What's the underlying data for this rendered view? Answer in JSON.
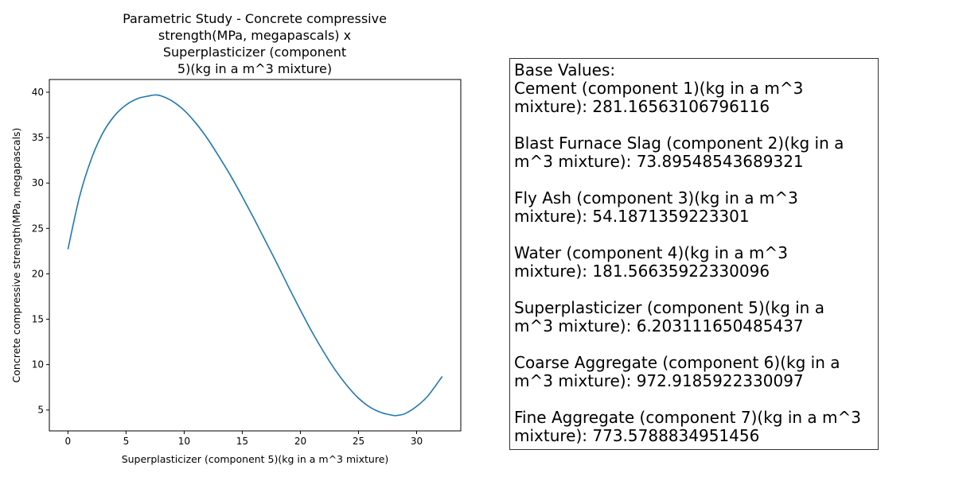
{
  "chart_data": {
    "type": "line",
    "title_lines": [
      "Parametric Study - Concrete compressive",
      "strength(MPa, megapascals)  x",
      "Superplasticizer (component",
      "5)(kg in a m^3 mixture)"
    ],
    "xlabel": "Superplasticizer (component 5)(kg in a m^3 mixture)",
    "ylabel": "Concrete compressive strength(MPa, megapascals)",
    "xlim": [
      -1.6,
      33.8
    ],
    "ylim": [
      2.7,
      41.4
    ],
    "x_ticks": [
      0,
      5,
      10,
      15,
      20,
      25,
      30
    ],
    "y_ticks": [
      5,
      10,
      15,
      20,
      25,
      30,
      35,
      40
    ],
    "grid": false,
    "series": [
      {
        "color": "#1f77b4",
        "x": [
          0,
          1,
          2,
          3,
          4,
          5,
          6,
          7,
          7.5,
          8,
          9,
          10,
          11,
          12,
          13,
          14,
          15,
          16,
          17,
          18,
          19,
          20,
          21,
          22,
          23,
          24,
          25,
          26,
          27,
          28,
          28.3,
          29,
          30,
          31,
          32.2
        ],
        "y": [
          22.7,
          28.5,
          32.6,
          35.5,
          37.4,
          38.6,
          39.3,
          39.6,
          39.7,
          39.6,
          39.0,
          38.0,
          36.6,
          34.9,
          32.9,
          30.8,
          28.5,
          26.1,
          23.6,
          21.1,
          18.5,
          16.0,
          13.6,
          11.4,
          9.4,
          7.7,
          6.3,
          5.3,
          4.7,
          4.4,
          4.4,
          4.6,
          5.4,
          6.6,
          8.7
        ]
      }
    ]
  },
  "base_values": {
    "header": "Base Values:",
    "entries": [
      {
        "line1": "Cement (component 1)(kg in a m^3",
        "line2": "mixture): 281.16563106796116"
      },
      {
        "line1": "Blast Furnace Slag (component 2)(kg in a",
        "line2": "m^3 mixture): 73.89548543689321"
      },
      {
        "line1": "Fly Ash (component 3)(kg in a m^3",
        "line2": "mixture): 54.1871359223301"
      },
      {
        "line1": "Water  (component 4)(kg in a m^3",
        "line2": "mixture): 181.56635922330096"
      },
      {
        "line1": "Superplasticizer (component 5)(kg in a",
        "line2": "m^3 mixture): 6.203111650485437"
      },
      {
        "line1": "Coarse Aggregate  (component 6)(kg in a",
        "line2": "m^3 mixture): 972.9185922330097"
      },
      {
        "line1": "Fine Aggregate (component 7)(kg in a m^3",
        "line2": "mixture): 773.5788834951456"
      }
    ]
  }
}
